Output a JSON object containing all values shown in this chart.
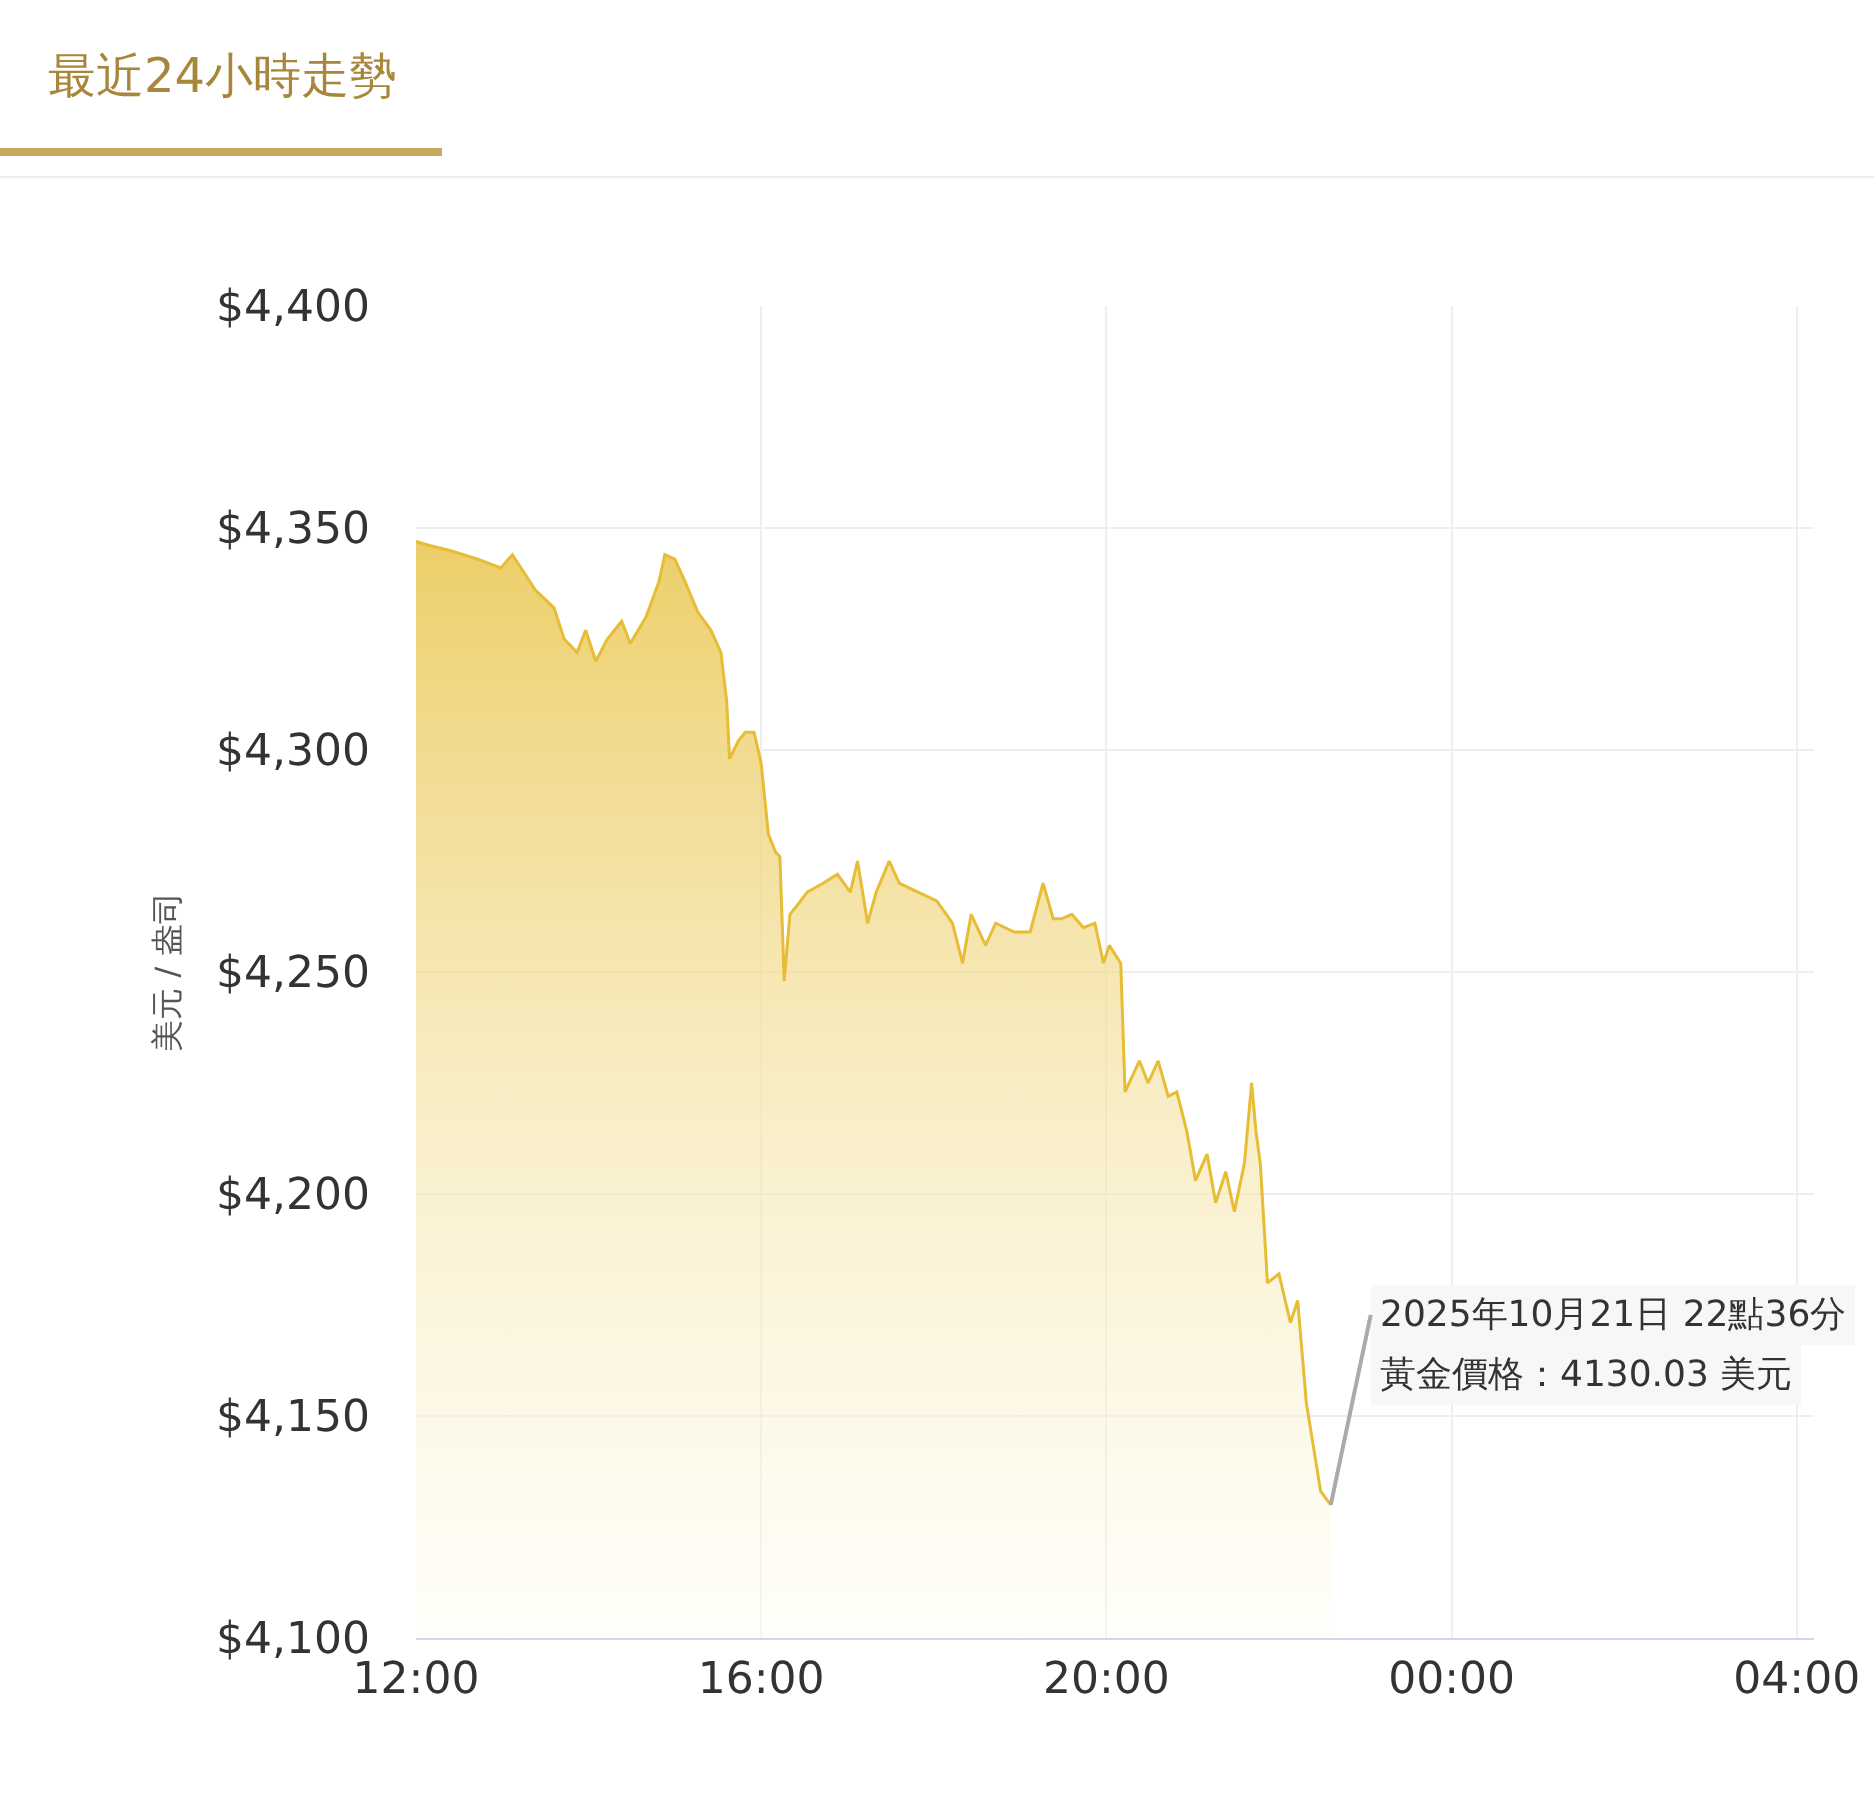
{
  "chart_data": {
    "type": "area",
    "title": "最近24小時走勢",
    "ylabel": "美元 / 盎司",
    "x": [
      "2025-10-21T12:00",
      "2025-10-21T12:10",
      "2025-10-21T12:23",
      "2025-10-21T12:43",
      "2025-10-21T12:59",
      "2025-10-21T13:07",
      "2025-10-21T13:23",
      "2025-10-21T13:36",
      "2025-10-21T13:43",
      "2025-10-21T13:52",
      "2025-10-21T13:58",
      "2025-10-21T14:05",
      "2025-10-21T14:13",
      "2025-10-21T14:23",
      "2025-10-21T14:29",
      "2025-10-21T14:40",
      "2025-10-21T14:49",
      "2025-10-21T14:53",
      "2025-10-21T15:00",
      "2025-10-21T15:07",
      "2025-10-21T15:16",
      "2025-10-21T15:25",
      "2025-10-21T15:32",
      "2025-10-21T15:36",
      "2025-10-21T15:38",
      "2025-10-21T15:44",
      "2025-10-21T15:49",
      "2025-10-21T15:55",
      "2025-10-21T16:00",
      "2025-10-21T16:05",
      "2025-10-21T16:10",
      "2025-10-21T16:13",
      "2025-10-21T16:16",
      "2025-10-21T16:20",
      "2025-10-21T16:25",
      "2025-10-21T16:32",
      "2025-10-21T16:43",
      "2025-10-21T16:53",
      "2025-10-21T17:02",
      "2025-10-21T17:07",
      "2025-10-21T17:14",
      "2025-10-21T17:20",
      "2025-10-21T17:29",
      "2025-10-21T17:36",
      "2025-10-21T17:49",
      "2025-10-21T18:02",
      "2025-10-21T18:13",
      "2025-10-21T18:20",
      "2025-10-21T18:26",
      "2025-10-21T18:36",
      "2025-10-21T18:43",
      "2025-10-21T18:56",
      "2025-10-21T19:07",
      "2025-10-21T19:16",
      "2025-10-21T19:23",
      "2025-10-21T19:29",
      "2025-10-21T19:36",
      "2025-10-21T19:44",
      "2025-10-21T19:52",
      "2025-10-21T19:58",
      "2025-10-21T20:02",
      "2025-10-21T20:10",
      "2025-10-21T20:13",
      "2025-10-21T20:23",
      "2025-10-21T20:29",
      "2025-10-21T20:36",
      "2025-10-21T20:43",
      "2025-10-21T20:49",
      "2025-10-21T20:56",
      "2025-10-21T21:02",
      "2025-10-21T21:10",
      "2025-10-21T21:16",
      "2025-10-21T21:23",
      "2025-10-21T21:29",
      "2025-10-21T21:36",
      "2025-10-21T21:41",
      "2025-10-21T21:44",
      "2025-10-21T21:47",
      "2025-10-21T21:52",
      "2025-10-21T22:00",
      "2025-10-21T22:08",
      "2025-10-21T22:13",
      "2025-10-21T22:19",
      "2025-10-21T22:29",
      "2025-10-21T22:36"
    ],
    "series": [
      {
        "color": "#e6bd35",
        "values": [
          4347,
          4346,
          4345,
          4343,
          4341,
          4344,
          4336,
          4332,
          4325,
          4322,
          4327,
          4320,
          4325,
          4329,
          4324,
          4330,
          4338,
          4344,
          4343,
          4338,
          4331,
          4327,
          4322,
          4311,
          4298,
          4302,
          4304,
          4304,
          4297,
          4281,
          4277,
          4276,
          4248,
          4263,
          4265,
          4268,
          4270,
          4272,
          4268,
          4275,
          4261,
          4268,
          4275,
          4270,
          4268,
          4266,
          4261,
          4252,
          4263,
          4256,
          4261,
          4259,
          4259,
          4270,
          4262,
          4262,
          4263,
          4260,
          4261,
          4252,
          4256,
          4252,
          4223,
          4230,
          4225,
          4230,
          4222,
          4223,
          4214,
          4203,
          4209,
          4198,
          4205,
          4196,
          4207,
          4225,
          4214,
          4207,
          4180,
          4182,
          4171,
          4176,
          4153,
          4133,
          4130
        ]
      }
    ],
    "xlim": [
      "2025-10-21T12:00",
      "2025-10-22T04:12"
    ],
    "xticks": [
      {
        "value": "2025-10-21T12:00",
        "label": "12:00"
      },
      {
        "value": "2025-10-21T16:00",
        "label": "16:00"
      },
      {
        "value": "2025-10-21T20:00",
        "label": "20:00"
      },
      {
        "value": "2025-10-22T00:00",
        "label": "00:00"
      },
      {
        "value": "2025-10-22T04:00",
        "label": "04:00"
      }
    ],
    "ylim": [
      4100,
      4400
    ],
    "yticks": [
      {
        "value": 4100,
        "label": "$4,100"
      },
      {
        "value": 4150,
        "label": "$4,150"
      },
      {
        "value": 4200,
        "label": "$4,200"
      },
      {
        "value": 4250,
        "label": "$4,250"
      },
      {
        "value": 4300,
        "label": "$4,300"
      },
      {
        "value": 4350,
        "label": "$4,350"
      },
      {
        "value": 4400,
        "label": "$4,400"
      }
    ],
    "grid": true,
    "marker": "none",
    "line_style": "solid",
    "annotations": [
      {
        "text": "2025年10月21日 22點36分",
        "x": "2025-10-21T22:36",
        "y": 4130
      },
      {
        "text": "黃金價格：4130.03 美元",
        "x": "2025-10-21T22:36",
        "y": 4130
      }
    ]
  }
}
